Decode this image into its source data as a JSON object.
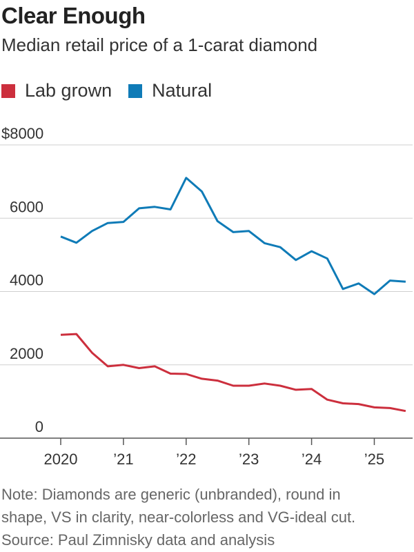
{
  "chart_data": {
    "type": "line",
    "title": "Clear Enough",
    "subtitle": "Median retail price of a 1-carat diamond",
    "ylim": [
      0,
      8000
    ],
    "yticks": [
      {
        "value": 8000,
        "label": "$8000"
      },
      {
        "value": 6000,
        "label": "6000"
      },
      {
        "value": 4000,
        "label": "4000"
      },
      {
        "value": 2000,
        "label": "2000"
      },
      {
        "value": 0,
        "label": "0"
      }
    ],
    "xlim": [
      2020.0,
      2025.6
    ],
    "xticks": [
      {
        "value": 2020,
        "label": "2020"
      },
      {
        "value": 2021,
        "label": "’21"
      },
      {
        "value": 2022,
        "label": "’22"
      },
      {
        "value": 2023,
        "label": "’23"
      },
      {
        "value": 2024,
        "label": "’24"
      },
      {
        "value": 2025,
        "label": "’25"
      }
    ],
    "x": [
      2020.0,
      2020.25,
      2020.5,
      2020.75,
      2021.0,
      2021.25,
      2021.5,
      2021.75,
      2022.0,
      2022.25,
      2022.5,
      2022.75,
      2023.0,
      2023.25,
      2023.5,
      2023.75,
      2024.0,
      2024.25,
      2024.5,
      2024.75,
      2025.0,
      2025.25,
      2025.5
    ],
    "series": [
      {
        "name": "Lab grown",
        "color": "#cc2f3d",
        "values": [
          2820,
          2840,
          2330,
          1960,
          2000,
          1910,
          1960,
          1760,
          1750,
          1620,
          1570,
          1430,
          1430,
          1490,
          1430,
          1320,
          1340,
          1050,
          950,
          930,
          840,
          820,
          740
        ]
      },
      {
        "name": "Natural",
        "color": "#0f7bb7",
        "values": [
          5500,
          5330,
          5650,
          5870,
          5900,
          6270,
          6310,
          6240,
          7100,
          6730,
          5920,
          5620,
          5650,
          5320,
          5210,
          4860,
          5100,
          4900,
          4070,
          4220,
          3930,
          4300,
          4270
        ]
      }
    ],
    "legend": [
      {
        "label": "Lab grown",
        "color": "#cc2f3d"
      },
      {
        "label": "Natural",
        "color": "#0f7bb7"
      }
    ],
    "note_lines": [
      "Note: Diamonds are generic (unbranded), round in",
      "shape, VS in clarity, near-colorless and VG-ideal cut."
    ],
    "source": "Source: Paul Zimnisky data and analysis"
  }
}
